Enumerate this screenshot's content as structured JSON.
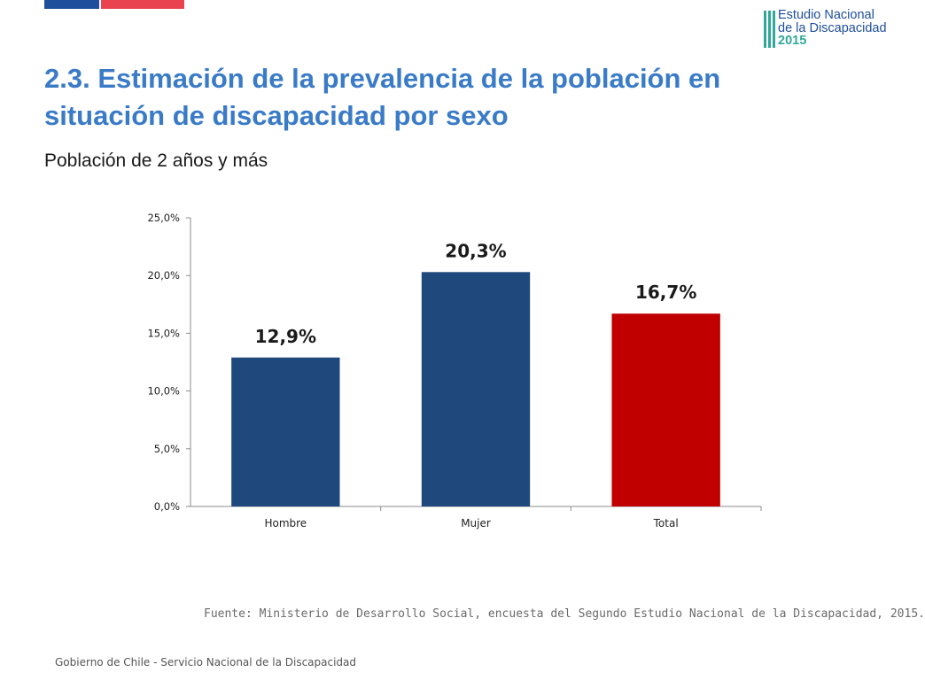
{
  "header": {
    "title": "2.3. Estimación de la prevalencia de la población en situación de discapacidad por sexo",
    "subtitle": "Población de 2 años y más"
  },
  "logo": {
    "line1": "Estudio Nacional",
    "line2": "de la Discapacidad",
    "year": "2015"
  },
  "colors": {
    "title": "#3a7bc8",
    "bar_primary": "#1f497d",
    "bar_total": "#c00000",
    "logo_blue": "#1f4e9c",
    "logo_teal": "#2fa89a"
  },
  "chart_data": {
    "type": "bar",
    "categories": [
      "Hombre",
      "Mujer",
      "Total"
    ],
    "values": [
      12.9,
      20.3,
      16.7
    ],
    "value_labels": [
      "12,9%",
      "20,3%",
      "16,7%"
    ],
    "bar_colors": [
      "#1f497d",
      "#1f497d",
      "#c00000"
    ],
    "ylim": [
      0,
      25
    ],
    "yticks": [
      0,
      5,
      10,
      15,
      20,
      25
    ],
    "ytick_labels": [
      "0,0%",
      "5,0%",
      "10,0%",
      "15,0%",
      "20,0%",
      "25,0%"
    ],
    "grid": false,
    "legend": "none"
  },
  "source": "Fuente: Ministerio de Desarrollo Social, encuesta del Segundo Estudio Nacional de la Discapacidad, 2015.",
  "footer": "Gobierno de Chile - Servicio Nacional de la Discapacidad"
}
